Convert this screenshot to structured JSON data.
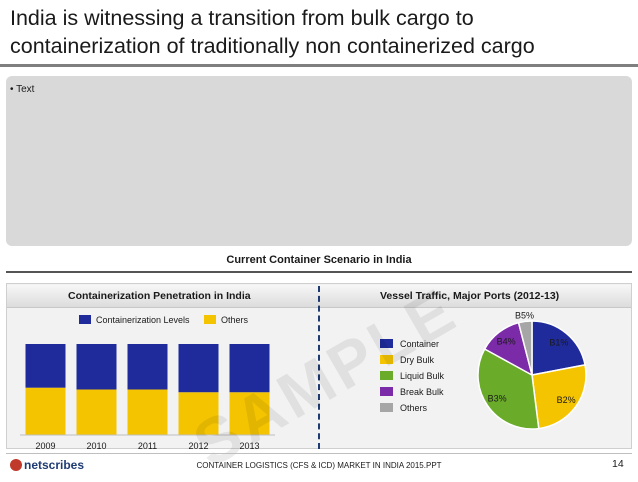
{
  "slide": {
    "title": "India is witnessing a transition from bulk cargo to containerization of traditionally non containerized cargo",
    "bullet": "• Text",
    "section_title": "Current Container Scenario in India",
    "watermark": "SAMPLE",
    "footer_text": "CONTAINER LOGISTICS (CFS & ICD) MARKET IN INDIA 2015.PPT",
    "page_number": "14",
    "logo": "netscribes"
  },
  "colors": {
    "navy": "#1f2a9b",
    "gold": "#f5c400",
    "green": "#6aab2a",
    "purple": "#7b2aa8",
    "gray": "#a6a6a6"
  },
  "chart_data": [
    {
      "type": "bar",
      "stacked": true,
      "title": "Containerization Penetration in India",
      "categories": [
        "2009",
        "2010",
        "2011",
        "2012",
        "2013"
      ],
      "series": [
        {
          "name": "Containerization Levels",
          "values": [
            48,
            50,
            50,
            53,
            53
          ]
        },
        {
          "name": "Others",
          "values": [
            52,
            50,
            50,
            47,
            47
          ]
        }
      ],
      "ylim": [
        0,
        100
      ],
      "legend": "top",
      "grid": false
    },
    {
      "type": "pie",
      "title": "Vessel Traffic, Major Ports (2012-13)",
      "labels": [
        "Container",
        "Dry Bulk",
        "Liquid Bulk",
        "Break Bulk",
        "Others"
      ],
      "values": [
        22,
        26,
        35,
        13,
        4
      ],
      "data_labels": [
        "B1%",
        "B2%",
        "B3%",
        "B4%",
        "B5%"
      ],
      "legend": "left"
    }
  ]
}
